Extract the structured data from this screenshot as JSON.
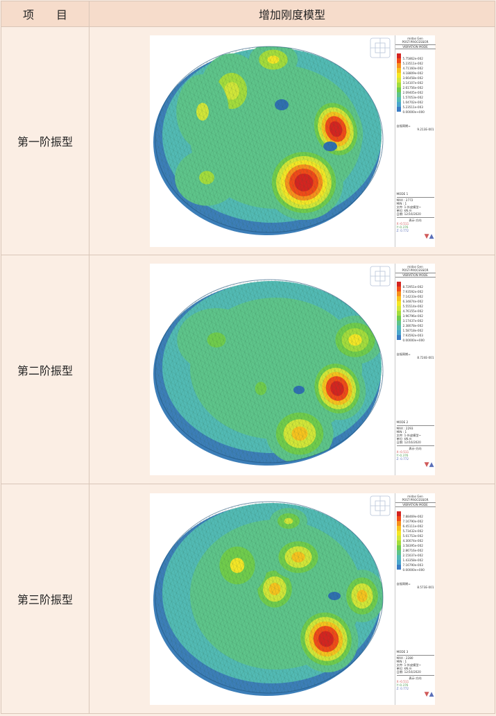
{
  "header": {
    "item": "项　　目",
    "model": "增加刚度模型"
  },
  "legend_colors": [
    "#d42420",
    "#f04a18",
    "#f7901c",
    "#f6c21e",
    "#f4e626",
    "#d2e638",
    "#a4dc3c",
    "#70cc4c",
    "#5ec48a",
    "#52bab4",
    "#4aa6cc",
    "#3a7cc4"
  ],
  "modes": [
    {
      "label": "第一阶振型",
      "legend": {
        "software": "midas Gen",
        "post": "POST-PROCESSOR",
        "mode_title": "VIBRATION MODE",
        "values": [
          "5.75862e-002",
          "5.23511e-002",
          "4.71160e-002",
          "4.18809e-002",
          "3.66458e-002",
          "3.14107e-002",
          "2.61756e-002",
          "2.09405e-002",
          "1.57053e-002",
          "1.04702e-002",
          "5.23511e-003",
          "0.00000e+000"
        ],
        "freq_label": "自振周期=",
        "freq_value": "9.213E-001",
        "mode_name": "MODE 1",
        "max": "MAX : 2772",
        "min": "MIN : 1",
        "file": "文件: 1-外皮模型~",
        "unit": "单位: kN.m",
        "date": "日期: 12/16/2020",
        "view": "表示-方向",
        "x": "X:-0.511",
        "y": "Y:-0.376",
        "z": "Z: 0.772"
      }
    },
    {
      "label": "第二阶振型",
      "legend": {
        "software": "midas Gen",
        "post": "POST-PROCESSOR",
        "mode_title": "VIBRATION MODE",
        "values": [
          "8.72951e-002",
          "7.93592e-002",
          "7.14233e-002",
          "6.34874e-002",
          "5.55514e-002",
          "4.76155e-002",
          "3.96796e-002",
          "3.17437e-002",
          "2.38078e-002",
          "1.58718e-002",
          "7.93592e-003",
          "0.00000e+000"
        ],
        "freq_label": "自振周期=",
        "freq_value": "8.724E-001",
        "mode_name": "MODE 2",
        "max": "MAX : 2293",
        "min": "MIN : 1",
        "file": "文件: 1-外皮模型~",
        "unit": "单位: kN.m",
        "date": "日期: 12/16/2020",
        "view": "表示-方向",
        "x": "X:-0.511",
        "y": "Y:-0.376",
        "z": "Z: 0.772"
      }
    },
    {
      "label": "第三阶振型",
      "legend": {
        "software": "midas Gen",
        "post": "POST-PROCESSOR",
        "mode_title": "VIBRATION MODE",
        "values": [
          "7.88469e-002",
          "7.16790e-002",
          "6.45111e-002",
          "5.73432e-002",
          "5.01753e-002",
          "4.30074e-002",
          "3.58395e-002",
          "2.86716e-002",
          "2.15037e-002",
          "1.43358e-002",
          "7.16790e-003",
          "0.00000e+000"
        ],
        "freq_label": "自振周期=",
        "freq_value": "8.573E-001",
        "mode_name": "MODE 3",
        "max": "MAX : 2280",
        "min": "MIN : 1",
        "file": "文件: 1-外皮模型~",
        "unit": "单位: kN.m",
        "date": "日期: 12/16/2020",
        "view": "表示-方向",
        "x": "X:-0.511",
        "y": "Y:-0.376",
        "z": "Z: 0.772"
      }
    }
  ]
}
